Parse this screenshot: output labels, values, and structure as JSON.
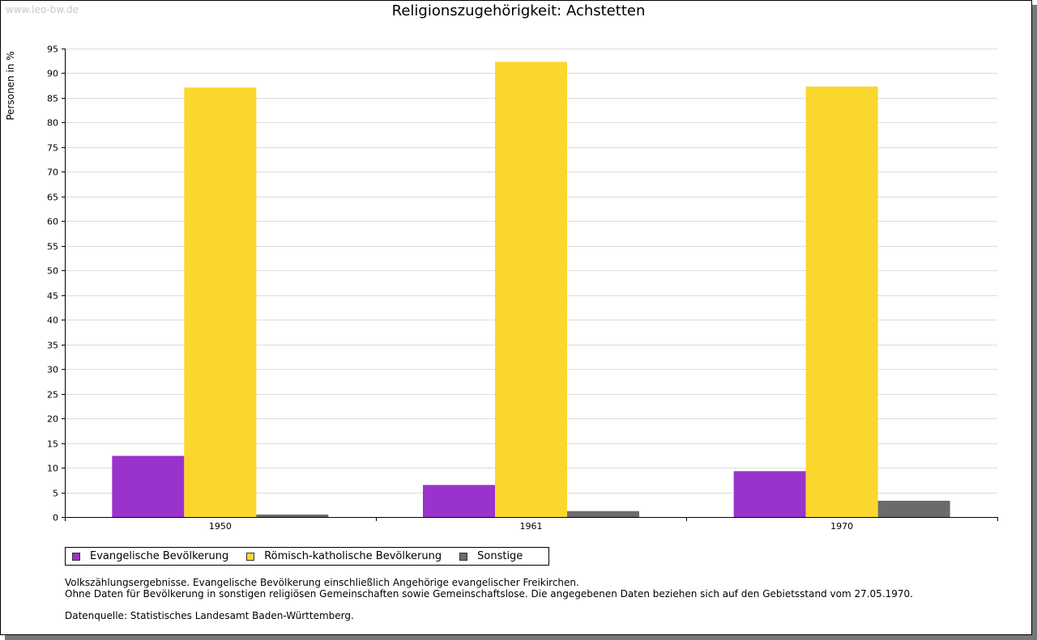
{
  "watermark": "www.leo-bw.de",
  "chart_data": {
    "type": "bar",
    "title": "Religionszugehörigkeit: Achstetten",
    "xlabel": "",
    "ylabel": "Personen in %",
    "categories": [
      "1950",
      "1961",
      "1970"
    ],
    "series": [
      {
        "name": "Evangelische Bevölkerung",
        "color": "#9933cc",
        "values": [
          12.4,
          6.5,
          9.3
        ]
      },
      {
        "name": "Römisch-katholische Bevölkerung",
        "color": "#fbd72e",
        "values": [
          87.1,
          92.3,
          87.3
        ]
      },
      {
        "name": "Sonstige",
        "color": "#6b6b6b",
        "values": [
          0.5,
          1.2,
          3.3
        ]
      }
    ],
    "ylim": [
      0,
      95
    ],
    "yticks": [
      0,
      5,
      10,
      15,
      20,
      25,
      30,
      35,
      40,
      45,
      50,
      55,
      60,
      65,
      70,
      75,
      80,
      85,
      90,
      95
    ],
    "grid": true,
    "legend_position": "bottom-left"
  },
  "notes": {
    "line1": "Volkszählungsergebnisse. Evangelische Bevölkerung einschließlich Angehörige evangelischer Freikirchen.",
    "line2": "Ohne Daten für Bevölkerung in sonstigen religiösen Gemeinschaften sowie Gemeinschaftslose. Die angegebenen Daten beziehen sich auf den Gebietsstand vom 27.05.1970.",
    "source": "Datenquelle: Statistisches Landesamt Baden-Württemberg."
  }
}
